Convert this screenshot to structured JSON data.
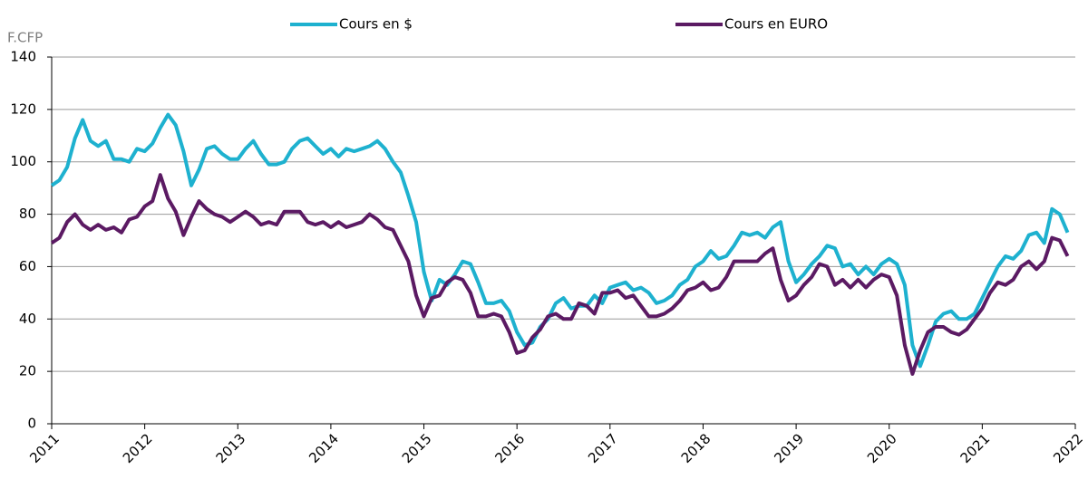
{
  "chart_data": {
    "type": "line",
    "y_label": "F.CFP",
    "xlim": [
      2011,
      2022
    ],
    "xticks": [
      2011,
      2012,
      2013,
      2014,
      2015,
      2016,
      2017,
      2018,
      2019,
      2020,
      2021,
      2022
    ],
    "ylim": [
      0,
      140
    ],
    "yticks": [
      0,
      20,
      40,
      60,
      80,
      100,
      120,
      140
    ],
    "grid": true,
    "legend": "top",
    "x": [
      2011,
      2011.083,
      2011.167,
      2011.25,
      2011.333,
      2011.417,
      2011.5,
      2011.583,
      2011.667,
      2011.75,
      2011.833,
      2011.917,
      2012,
      2012.083,
      2012.167,
      2012.25,
      2012.333,
      2012.417,
      2012.5,
      2012.583,
      2012.667,
      2012.75,
      2012.833,
      2012.917,
      2013,
      2013.083,
      2013.167,
      2013.25,
      2013.333,
      2013.417,
      2013.5,
      2013.583,
      2013.667,
      2013.75,
      2013.833,
      2013.917,
      2014,
      2014.083,
      2014.167,
      2014.25,
      2014.333,
      2014.417,
      2014.5,
      2014.583,
      2014.667,
      2014.75,
      2014.833,
      2014.917,
      2015,
      2015.083,
      2015.167,
      2015.25,
      2015.333,
      2015.417,
      2015.5,
      2015.583,
      2015.667,
      2015.75,
      2015.833,
      2015.917,
      2016,
      2016.083,
      2016.167,
      2016.25,
      2016.333,
      2016.417,
      2016.5,
      2016.583,
      2016.667,
      2016.75,
      2016.833,
      2016.917,
      2017,
      2017.083,
      2017.167,
      2017.25,
      2017.333,
      2017.417,
      2017.5,
      2017.583,
      2017.667,
      2017.75,
      2017.833,
      2017.917,
      2018,
      2018.083,
      2018.167,
      2018.25,
      2018.333,
      2018.417,
      2018.5,
      2018.583,
      2018.667,
      2018.75,
      2018.833,
      2018.917,
      2019,
      2019.083,
      2019.167,
      2019.25,
      2019.333,
      2019.417,
      2019.5,
      2019.583,
      2019.667,
      2019.75,
      2019.833,
      2019.917,
      2020,
      2020.083,
      2020.167,
      2020.25,
      2020.333,
      2020.417,
      2020.5,
      2020.583,
      2020.667,
      2020.75,
      2020.833,
      2020.917,
      2021,
      2021.083,
      2021.167,
      2021.25,
      2021.333,
      2021.417,
      2021.5,
      2021.583,
      2021.667,
      2021.75,
      2021.833,
      2021.917
    ],
    "series": [
      {
        "name": "Cours en $",
        "color": "#1eb1cf",
        "values": [
          91,
          93,
          98,
          109,
          116,
          108,
          106,
          108,
          101,
          101,
          100,
          105,
          104,
          107,
          113,
          118,
          114,
          104,
          91,
          97,
          105,
          106,
          103,
          101,
          101,
          105,
          108,
          103,
          99,
          99,
          100,
          105,
          108,
          109,
          106,
          103,
          105,
          102,
          105,
          104,
          105,
          106,
          108,
          105,
          100,
          96,
          87,
          77,
          58,
          47,
          55,
          53,
          57,
          62,
          61,
          54,
          46,
          46,
          47,
          43,
          35,
          30,
          31,
          37,
          40,
          46,
          48,
          44,
          45,
          45,
          49,
          46,
          52,
          53,
          54,
          51,
          52,
          50,
          46,
          47,
          49,
          53,
          55,
          60,
          62,
          66,
          63,
          64,
          68,
          73,
          72,
          73,
          71,
          75,
          77,
          62,
          54,
          57,
          61,
          64,
          68,
          67,
          60,
          61,
          57,
          60,
          57,
          61,
          63,
          61,
          53,
          30,
          22,
          30,
          39,
          42,
          43,
          40,
          40,
          42,
          48,
          54,
          60,
          64,
          63,
          66,
          72,
          73,
          69,
          82,
          80,
          73
        ]
      },
      {
        "name": "Cours en EURO",
        "color": "#5b1a63",
        "values": [
          69,
          71,
          77,
          80,
          76,
          74,
          76,
          74,
          75,
          73,
          78,
          79,
          83,
          85,
          95,
          86,
          81,
          72,
          79,
          85,
          82,
          80,
          79,
          77,
          79,
          81,
          79,
          76,
          77,
          76,
          81,
          81,
          81,
          77,
          76,
          77,
          75,
          77,
          75,
          76,
          77,
          80,
          78,
          75,
          74,
          68,
          62,
          49,
          41,
          48,
          49,
          54,
          56,
          55,
          50,
          41,
          41,
          42,
          41,
          35,
          27,
          28,
          33,
          36,
          41,
          42,
          40,
          40,
          46,
          45,
          42,
          50,
          50,
          51,
          48,
          49,
          45,
          41,
          41,
          42,
          44,
          47,
          51,
          52,
          54,
          51,
          52,
          56,
          62,
          62,
          62,
          62,
          65,
          67,
          55,
          47,
          49,
          53,
          56,
          61,
          60,
          53,
          55,
          52,
          55,
          52,
          55,
          57,
          56,
          49,
          30,
          19,
          28,
          35,
          37,
          37,
          35,
          34,
          36,
          40,
          44,
          50,
          54,
          53,
          55,
          60,
          62,
          59,
          62,
          71,
          70,
          64
        ]
      }
    ]
  }
}
